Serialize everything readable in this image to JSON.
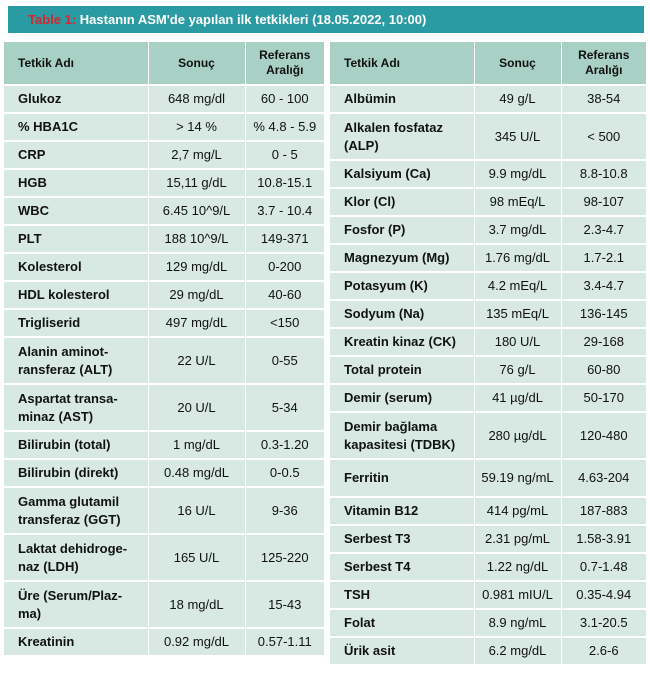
{
  "title": {
    "label": "Table 1:",
    "text": " Hastanın ASM'de yapılan ilk tetkikleri (18.05.2022, 10:00)"
  },
  "headers": {
    "name": "Tetkik Adı",
    "result": "Sonuç",
    "ref": "Referans Aralığı"
  },
  "left_rows": [
    {
      "name": "Glukoz",
      "result": "648 mg/dl",
      "ref": "60 - 100"
    },
    {
      "name": "% HBA1C",
      "result": "> 14 %",
      "ref": "% 4.8 - 5.9"
    },
    {
      "name": "CRP",
      "result": "2,7 mg/L",
      "ref": "0 - 5"
    },
    {
      "name": "HGB",
      "result": "15,11 g/dL",
      "ref": "10.8-15.1"
    },
    {
      "name": "WBC",
      "result": "6.45 10^9/L",
      "ref": "3.7 - 10.4"
    },
    {
      "name": "PLT",
      "result": "188 10^9/L",
      "ref": "149-371"
    },
    {
      "name": "Kolesterol",
      "result": "129 mg/dL",
      "ref": "0-200"
    },
    {
      "name": "HDL kolesterol",
      "result": "29 mg/dL",
      "ref": "40-60"
    },
    {
      "name": "Trigliserid",
      "result": "497 mg/dL",
      "ref": "<150"
    },
    {
      "name": "Alanin aminot-ransferaz (ALT)",
      "result": "22 U/L",
      "ref": "0-55"
    },
    {
      "name": "Aspartat transa-minaz (AST)",
      "result": "20 U/L",
      "ref": "5-34"
    },
    {
      "name": "Bilirubin (total)",
      "result": "1 mg/dL",
      "ref": "0.3-1.20"
    },
    {
      "name": "Bilirubin (direkt)",
      "result": "0.48 mg/dL",
      "ref": "0-0.5"
    },
    {
      "name": "Gamma glutamil transferaz (GGT)",
      "result": "16 U/L",
      "ref": "9-36"
    },
    {
      "name": "Laktat dehidroge-naz (LDH)",
      "result": "165 U/L",
      "ref": "125-220"
    },
    {
      "name": "Üre (Serum/Plaz-ma)",
      "result": "18 mg/dL",
      "ref": "15-43"
    },
    {
      "name": "Kreatinin",
      "result": "0.92 mg/dL",
      "ref": "0.57-1.11"
    }
  ],
  "right_rows": [
    {
      "name": "Albümin",
      "result": "49 g/L",
      "ref": "38-54"
    },
    {
      "name": "Alkalen fosfataz (ALP)",
      "result": "345 U/L",
      "ref": "< 500"
    },
    {
      "name": "Kalsiyum (Ca)",
      "result": "9.9 mg/dL",
      "ref": "8.8-10.8"
    },
    {
      "name": "Klor (Cl)",
      "result": "98 mEq/L",
      "ref": "98-107"
    },
    {
      "name": "Fosfor (P)",
      "result": "3.7 mg/dL",
      "ref": "2.3-4.7"
    },
    {
      "name": "Magnezyum (Mg)",
      "result": "1.76 mg/dL",
      "ref": "1.7-2.1"
    },
    {
      "name": "Potasyum (K)",
      "result": "4.2 mEq/L",
      "ref": "3.4-4.7"
    },
    {
      "name": "Sodyum (Na)",
      "result": "135 mEq/L",
      "ref": "136-145"
    },
    {
      "name": "Kreatin kinaz (CK)",
      "result": "180 U/L",
      "ref": "29-168"
    },
    {
      "name": "Total protein",
      "result": "76 g/L",
      "ref": "60-80"
    },
    {
      "name": "Demir (serum)",
      "result": "41 µg/dL",
      "ref": "50-170"
    },
    {
      "name": "Demir bağlama kapasitesi (TDBK)",
      "result": "280 µg/dL",
      "ref": "120-480"
    },
    {
      "name": "Ferritin",
      "result": "59.19 ng/mL",
      "ref": "4.63-204"
    },
    {
      "name": "Vitamin B12",
      "result": "414 pg/mL",
      "ref": "187-883"
    },
    {
      "name": "Serbest T3",
      "result": "2.31 pg/mL",
      "ref": "1.58-3.91"
    },
    {
      "name": "Serbest T4",
      "result": "1.22 ng/dL",
      "ref": "0.7-1.48"
    },
    {
      "name": "TSH",
      "result": "0.981 mIU/L",
      "ref": "0.35-4.94"
    },
    {
      "name": "Folat",
      "result": "8.9 ng/mL",
      "ref": "3.1-20.5"
    },
    {
      "name": "Ürik asit",
      "result": "6.2 mg/dL",
      "ref": "2.6-6"
    }
  ]
}
